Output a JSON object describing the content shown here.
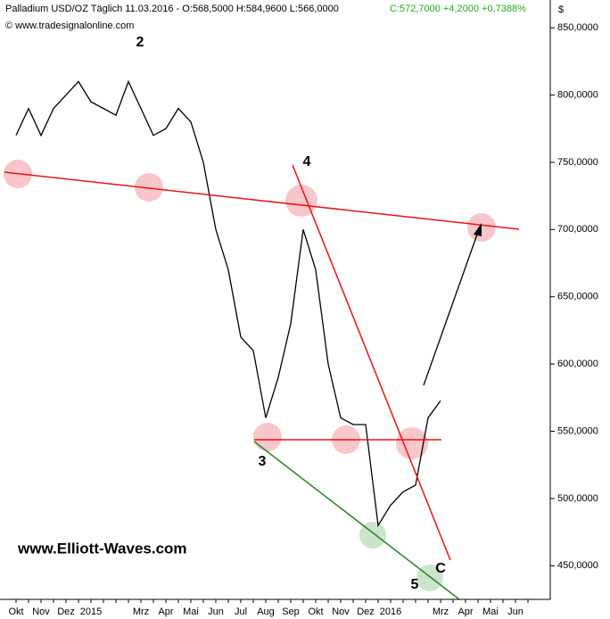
{
  "chart_data": {
    "type": "line",
    "title": "Palladium USD/OZ Täglich  11.03.2016 - O:568,5000 H:584,9600 L:566,0000",
    "title_change": "C:572,7000 +4,2000 +0,7388%",
    "subtitle": "© www.tradesignalonline.com",
    "y_axis_label": "$",
    "watermark": "www.Elliott-Waves.com",
    "annotations": [
      "2",
      "3",
      "4",
      "5",
      "C"
    ],
    "categories": [
      "Okt",
      null,
      "Nov",
      null,
      "Dez",
      null,
      "2015",
      null,
      null,
      null,
      "Mrz",
      null,
      "Apr",
      null,
      "Mai",
      null,
      "Jun",
      null,
      "Jul",
      null,
      "Aug",
      null,
      "Sep",
      null,
      "Okt",
      null,
      "Nov",
      null,
      "Dez",
      null,
      "2016",
      null,
      null,
      null,
      "Mrz",
      null,
      "Apr",
      null,
      "Mai",
      null,
      "Jun",
      null
    ],
    "series": [
      {
        "name": "Palladium USD/OZ",
        "color": "#000000",
        "values": [
          770,
          790,
          770,
          790,
          800,
          810,
          795,
          790,
          785,
          810,
          790,
          770,
          775,
          790,
          780,
          750,
          700,
          670,
          620,
          610,
          560,
          590,
          630,
          700,
          670,
          600,
          560,
          555,
          555,
          480,
          495,
          505,
          510,
          560,
          572.7,
          null,
          null,
          null,
          null,
          null,
          null,
          null
        ]
      }
    ],
    "ylim": [
      425,
      870
    ],
    "yticks": [
      {
        "value": 450,
        "label": "450,0000"
      },
      {
        "value": 500,
        "label": "500,0000"
      },
      {
        "value": 550,
        "label": "550,0000"
      },
      {
        "value": 600,
        "label": "600,0000"
      },
      {
        "value": 650,
        "label": "650,0000"
      },
      {
        "value": 700,
        "label": "700,0000"
      },
      {
        "value": 750,
        "label": "750,0000"
      },
      {
        "value": 800,
        "label": "800,0000"
      },
      {
        "value": 850,
        "label": "850,0000"
      }
    ],
    "grid": false
  }
}
